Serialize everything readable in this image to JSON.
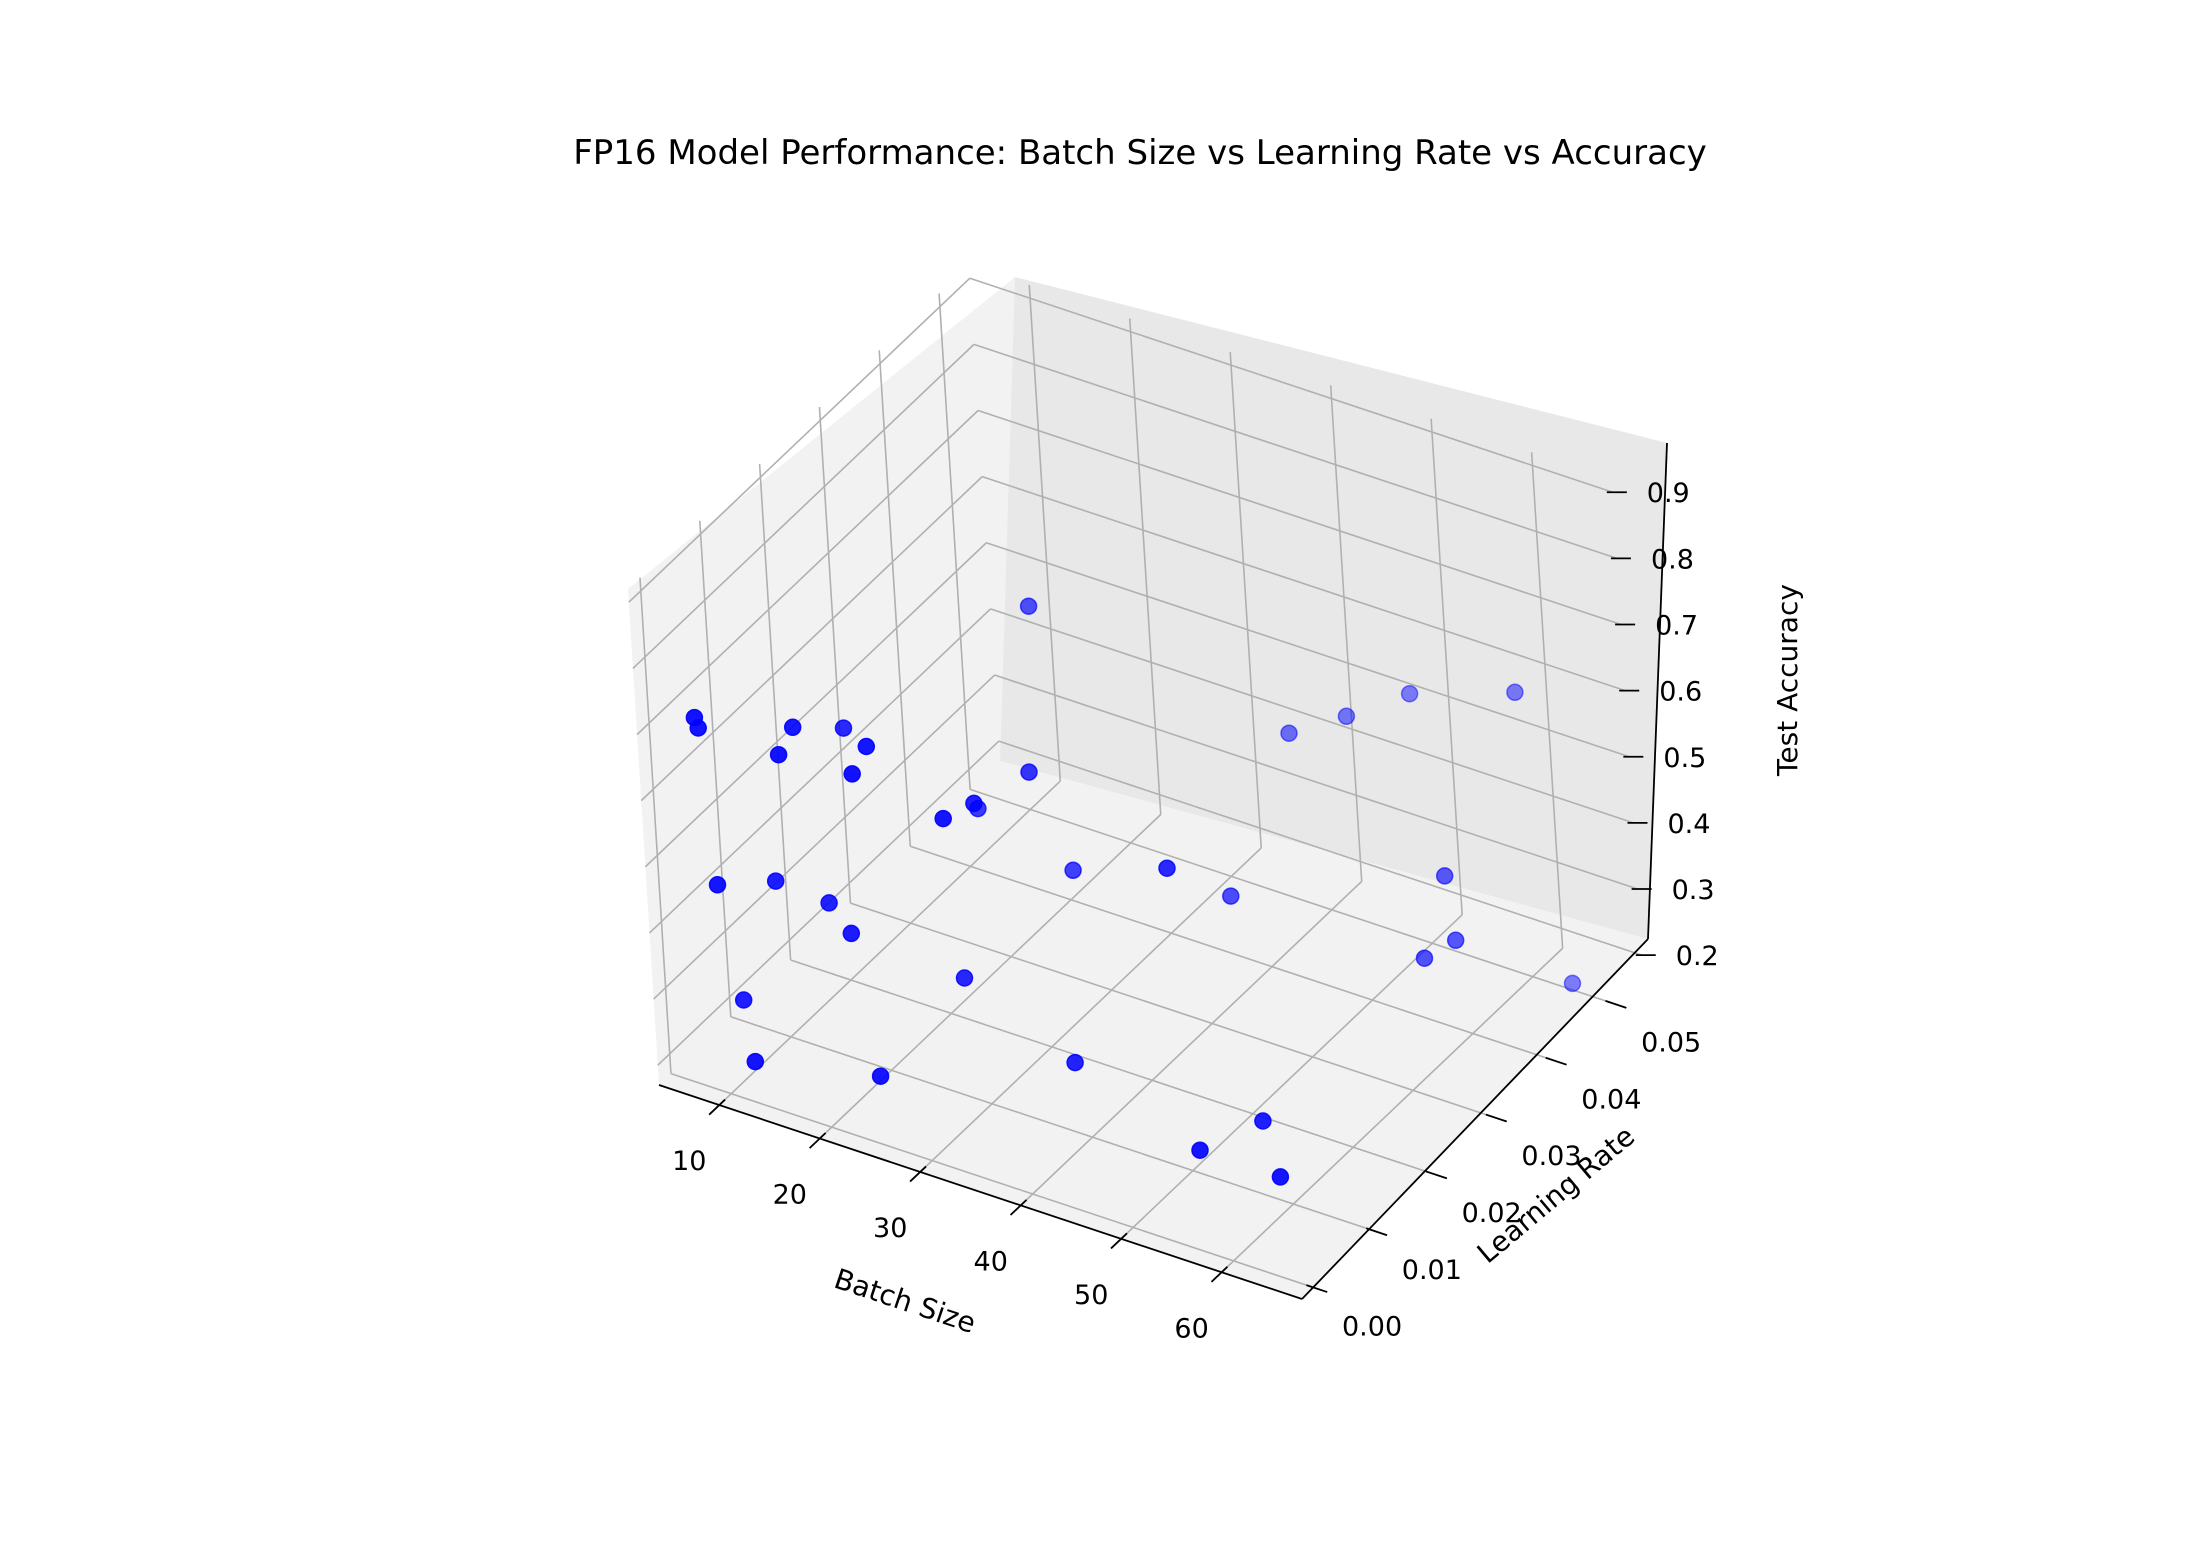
{
  "chart_data": {
    "type": "scatter3d",
    "title": "FP16 Model Performance: Batch Size vs Learning Rate vs Accuracy",
    "xlabel": "Batch Size",
    "ylabel": "Learning Rate",
    "zlabel": "Test Accuracy",
    "xlim": [
      4,
      68
    ],
    "ylim": [
      -0.002,
      0.055
    ],
    "zlim": [
      0.17,
      0.92
    ],
    "xticks": [
      "10",
      "20",
      "30",
      "40",
      "50",
      "60"
    ],
    "yticks": [
      "0.00",
      "0.01",
      "0.02",
      "0.03",
      "0.04",
      "0.05"
    ],
    "zticks": [
      "0.2",
      "0.3",
      "0.4",
      "0.5",
      "0.6",
      "0.7",
      "0.8",
      "0.9"
    ],
    "grid": true,
    "marker_color": "#0000ff",
    "points": [
      {
        "x": 8,
        "y": 0.001,
        "z": 0.72
      },
      {
        "x": 8,
        "y": 0.0015,
        "z": 0.7
      },
      {
        "x": 16,
        "y": 0.0015,
        "z": 0.7
      },
      {
        "x": 16,
        "y": 0.004,
        "z": 0.72
      },
      {
        "x": 24,
        "y": 0.0005,
        "z": 0.72
      },
      {
        "x": 24,
        "y": 0.003,
        "z": 0.74
      },
      {
        "x": 32,
        "y": 0.002,
        "z": 0.68
      },
      {
        "x": 32,
        "y": 0.007,
        "z": 0.66
      },
      {
        "x": 16,
        "y": 0.012,
        "z": 0.65
      },
      {
        "x": 24,
        "y": 0.03,
        "z": 0.72
      },
      {
        "x": 32,
        "y": 0.016,
        "z": 0.63
      },
      {
        "x": 48,
        "y": 0.012,
        "z": 0.6
      },
      {
        "x": 8,
        "y": 0.003,
        "z": 0.45
      },
      {
        "x": 12,
        "y": 0.006,
        "z": 0.45
      },
      {
        "x": 16,
        "y": 0.008,
        "z": 0.42
      },
      {
        "x": 20,
        "y": 0.005,
        "z": 0.42
      },
      {
        "x": 24,
        "y": 0.02,
        "z": 0.5
      },
      {
        "x": 32,
        "y": 0.022,
        "z": 0.43
      },
      {
        "x": 28,
        "y": 0.01,
        "z": 0.35
      },
      {
        "x": 24,
        "y": 0.002,
        "z": 0.25
      },
      {
        "x": 12,
        "y": 0.001,
        "z": 0.22
      },
      {
        "x": 8,
        "y": 0.006,
        "z": 0.25
      },
      {
        "x": 40,
        "y": 0.008,
        "z": 0.3
      },
      {
        "x": 44,
        "y": 0.028,
        "z": 0.4
      },
      {
        "x": 40,
        "y": 0.045,
        "z": 0.48
      },
      {
        "x": 44,
        "y": 0.048,
        "z": 0.5
      },
      {
        "x": 48,
        "y": 0.052,
        "z": 0.52
      },
      {
        "x": 60,
        "y": 0.05,
        "z": 0.6
      },
      {
        "x": 62,
        "y": 0.034,
        "z": 0.47
      },
      {
        "x": 64,
        "y": 0.032,
        "z": 0.4
      },
      {
        "x": 62,
        "y": 0.03,
        "z": 0.38
      },
      {
        "x": 64,
        "y": 0.05,
        "z": 0.18
      },
      {
        "x": 56,
        "y": 0.002,
        "z": 0.3
      },
      {
        "x": 60,
        "y": 0.006,
        "z": 0.33
      },
      {
        "x": 64,
        "y": 0.002,
        "z": 0.3
      }
    ]
  }
}
